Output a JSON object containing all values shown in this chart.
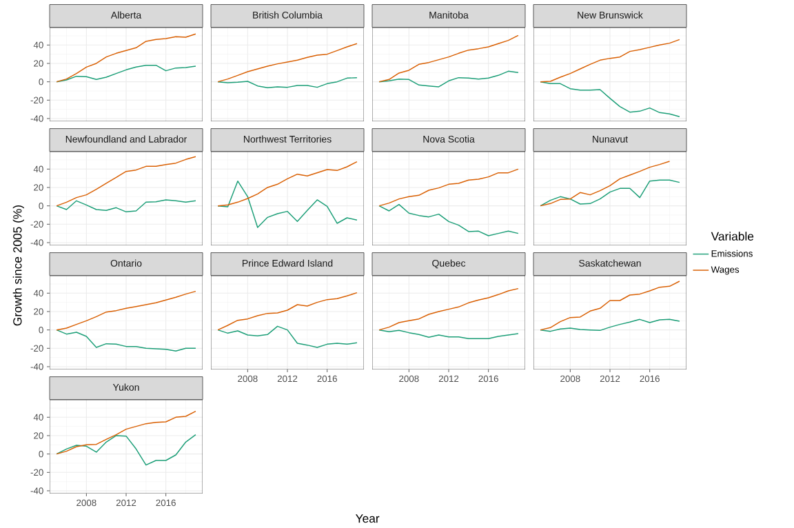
{
  "chart_data": [
    {
      "type": "line",
      "title": "Alberta",
      "x": [
        2005,
        2006,
        2007,
        2008,
        2009,
        2010,
        2011,
        2012,
        2013,
        2014,
        2015,
        2016,
        2017,
        2018,
        2019
      ],
      "xlim": [
        2004.3,
        2019.7
      ],
      "ylim": [
        -43,
        59
      ],
      "xticks": [
        2008,
        2012,
        2016
      ],
      "yticks": [
        -40,
        -20,
        0,
        20,
        40
      ],
      "grid": true,
      "tick_labels": "y",
      "series": [
        {
          "color": "#1b9e77",
          "values": [
            0,
            2,
            6,
            5.5,
            2.5,
            5,
            9,
            13,
            16,
            18,
            18,
            12,
            15,
            15.5,
            17
          ]
        },
        {
          "color": "#d95f02",
          "values": [
            0,
            3,
            9,
            16,
            20,
            27,
            31,
            34,
            37,
            44,
            46,
            47,
            49,
            48.5,
            52
          ]
        }
      ]
    },
    {
      "type": "line",
      "title": "British Columbia",
      "x": [
        2005,
        2006,
        2007,
        2008,
        2009,
        2010,
        2011,
        2012,
        2013,
        2014,
        2015,
        2016,
        2017,
        2018,
        2019
      ],
      "xlim": [
        2004.3,
        2019.7
      ],
      "ylim": [
        -43,
        59
      ],
      "xticks": [
        2008,
        2012,
        2016
      ],
      "yticks": [
        -40,
        -20,
        0,
        20,
        40
      ],
      "grid": true,
      "tick_labels": false,
      "series": [
        {
          "color": "#1b9e77",
          "values": [
            0,
            -1,
            -0.5,
            0.5,
            -4.5,
            -6.5,
            -5.5,
            -6,
            -4,
            -4,
            -6,
            -2,
            0,
            4,
            4.5
          ]
        },
        {
          "color": "#d95f02",
          "values": [
            0,
            3,
            7,
            11,
            14,
            17,
            19.5,
            21.5,
            23.5,
            26.5,
            29,
            30,
            34,
            38,
            41.5
          ]
        }
      ]
    },
    {
      "type": "line",
      "title": "Manitoba",
      "x": [
        2005,
        2006,
        2007,
        2008,
        2009,
        2010,
        2011,
        2012,
        2013,
        2014,
        2015,
        2016,
        2017,
        2018,
        2019
      ],
      "xlim": [
        2004.3,
        2019.7
      ],
      "ylim": [
        -43,
        59
      ],
      "xticks": [
        2008,
        2012,
        2016
      ],
      "yticks": [
        -40,
        -20,
        0,
        20,
        40
      ],
      "grid": true,
      "tick_labels": false,
      "series": [
        {
          "color": "#1b9e77",
          "values": [
            0,
            1,
            3,
            2.5,
            -3.5,
            -4.5,
            -5.5,
            1,
            4.5,
            4,
            3,
            4,
            7,
            11.5,
            10
          ]
        },
        {
          "color": "#d95f02",
          "values": [
            0,
            2.5,
            9.5,
            12.5,
            19,
            21,
            24,
            27,
            31,
            34.5,
            36,
            38,
            41.5,
            45,
            50.5
          ]
        }
      ]
    },
    {
      "type": "line",
      "title": "New Brunswick",
      "x": [
        2005,
        2006,
        2007,
        2008,
        2009,
        2010,
        2011,
        2012,
        2013,
        2014,
        2015,
        2016,
        2017,
        2018,
        2019
      ],
      "xlim": [
        2004.3,
        2019.7
      ],
      "ylim": [
        -43,
        59
      ],
      "xticks": [
        2008,
        2012,
        2016
      ],
      "yticks": [
        -40,
        -20,
        0,
        20,
        40
      ],
      "grid": true,
      "tick_labels": false,
      "series": [
        {
          "color": "#1b9e77",
          "values": [
            0,
            -2,
            -2,
            -7.5,
            -9,
            -9,
            -8.5,
            -18,
            -27,
            -33,
            -32,
            -28.5,
            -33.5,
            -35,
            -38
          ]
        },
        {
          "color": "#d95f02",
          "values": [
            0,
            0.5,
            5,
            9,
            14,
            19,
            23.5,
            25.5,
            27,
            33,
            35,
            37.5,
            40,
            42,
            46
          ]
        }
      ]
    },
    {
      "type": "line",
      "title": "Newfoundland and Labrador",
      "x": [
        2005,
        2006,
        2007,
        2008,
        2009,
        2010,
        2011,
        2012,
        2013,
        2014,
        2015,
        2016,
        2017,
        2018,
        2019
      ],
      "xlim": [
        2004.3,
        2019.7
      ],
      "ylim": [
        -43,
        59
      ],
      "xticks": [
        2008,
        2012,
        2016
      ],
      "yticks": [
        -40,
        -20,
        0,
        20,
        40
      ],
      "grid": true,
      "tick_labels": "y",
      "series": [
        {
          "color": "#1b9e77",
          "values": [
            0,
            -4,
            5.5,
            1,
            -4,
            -5,
            -2,
            -6.5,
            -5.5,
            4,
            4.5,
            6.5,
            5.5,
            4,
            5.5
          ]
        },
        {
          "color": "#d95f02",
          "values": [
            0,
            4,
            9,
            12,
            18,
            24.5,
            31,
            37.5,
            39,
            43,
            43,
            45,
            46.5,
            50.5,
            53.5
          ]
        }
      ]
    },
    {
      "type": "line",
      "title": "Northwest Territories",
      "x": [
        2005,
        2006,
        2007,
        2008,
        2009,
        2010,
        2011,
        2012,
        2013,
        2014,
        2015,
        2016,
        2017,
        2018,
        2019
      ],
      "xlim": [
        2004.3,
        2019.7
      ],
      "ylim": [
        -43,
        59
      ],
      "xticks": [
        2008,
        2012,
        2016
      ],
      "yticks": [
        -40,
        -20,
        0,
        20,
        40
      ],
      "grid": true,
      "tick_labels": false,
      "series": [
        {
          "color": "#1b9e77",
          "values": [
            0,
            -1,
            27,
            10,
            -23.5,
            -12.5,
            -8.5,
            -6,
            -17,
            -5,
            6.5,
            -0.5,
            -19,
            -13,
            -15.5
          ]
        },
        {
          "color": "#d95f02",
          "values": [
            0,
            1,
            4,
            8,
            13,
            20,
            23.5,
            29.5,
            34.5,
            32.5,
            36,
            39.5,
            38.5,
            42.5,
            48
          ]
        }
      ]
    },
    {
      "type": "line",
      "title": "Nova Scotia",
      "x": [
        2005,
        2006,
        2007,
        2008,
        2009,
        2010,
        2011,
        2012,
        2013,
        2014,
        2015,
        2016,
        2017,
        2018,
        2019
      ],
      "xlim": [
        2004.3,
        2019.7
      ],
      "ylim": [
        -43,
        59
      ],
      "xticks": [
        2008,
        2012,
        2016
      ],
      "yticks": [
        -40,
        -20,
        0,
        20,
        40
      ],
      "grid": true,
      "tick_labels": false,
      "series": [
        {
          "color": "#1b9e77",
          "values": [
            0,
            -5.5,
            1.5,
            -8,
            -10.5,
            -12,
            -9,
            -17,
            -21,
            -28,
            -27.5,
            -32.5,
            -30,
            -27.5,
            -30
          ]
        },
        {
          "color": "#d95f02",
          "values": [
            0,
            3,
            7.5,
            10,
            11.5,
            17,
            19.5,
            23.5,
            24.5,
            28,
            29,
            31.5,
            36,
            36,
            40
          ]
        }
      ]
    },
    {
      "type": "line",
      "title": "Nunavut",
      "x": [
        2005,
        2006,
        2007,
        2008,
        2009,
        2010,
        2011,
        2012,
        2013,
        2014,
        2015,
        2016,
        2017,
        2018,
        2019
      ],
      "xlim": [
        2004.3,
        2019.7
      ],
      "ylim": [
        -43,
        59
      ],
      "xticks": [
        2008,
        2012,
        2016
      ],
      "yticks": [
        -40,
        -20,
        0,
        20,
        40
      ],
      "grid": true,
      "tick_labels": false,
      "series": [
        {
          "color": "#1b9e77",
          "values": [
            0,
            6,
            10,
            7.5,
            2,
            2.5,
            7.5,
            15,
            19,
            19,
            9,
            27,
            28,
            28,
            25.5
          ]
        },
        {
          "color": "#d95f02",
          "values": [
            0,
            2.5,
            7,
            7.5,
            14.5,
            12,
            16.5,
            22,
            29.5,
            33.5,
            37.5,
            42,
            45,
            48.5,
            null
          ]
        }
      ]
    },
    {
      "type": "line",
      "title": "Ontario",
      "ylabel": "Growth since 2005 (%)",
      "x": [
        2005,
        2006,
        2007,
        2008,
        2009,
        2010,
        2011,
        2012,
        2013,
        2014,
        2015,
        2016,
        2017,
        2018,
        2019
      ],
      "xlim": [
        2004.3,
        2019.7
      ],
      "ylim": [
        -43,
        59
      ],
      "xticks": [
        2008,
        2012,
        2016
      ],
      "yticks": [
        -40,
        -20,
        0,
        20,
        40
      ],
      "grid": true,
      "tick_labels": "y",
      "series": [
        {
          "color": "#1b9e77",
          "values": [
            0,
            -4.5,
            -2.5,
            -7,
            -19,
            -15,
            -15.5,
            -18,
            -18,
            -20,
            -20.5,
            -21,
            -23,
            -20,
            -20
          ]
        },
        {
          "color": "#d95f02",
          "values": [
            0,
            2,
            6,
            10,
            14.5,
            19.5,
            21,
            23.5,
            25.5,
            27.5,
            29.5,
            32.5,
            35.5,
            39,
            42
          ]
        }
      ]
    },
    {
      "type": "line",
      "title": "Prince Edward Island",
      "xlabel": "Year",
      "x": [
        2005,
        2006,
        2007,
        2008,
        2009,
        2010,
        2011,
        2012,
        2013,
        2014,
        2015,
        2016,
        2017,
        2018,
        2019
      ],
      "xlim": [
        2004.3,
        2019.7
      ],
      "ylim": [
        -43,
        59
      ],
      "xticks": [
        2008,
        2012,
        2016
      ],
      "yticks": [
        -40,
        -20,
        0,
        20,
        40
      ],
      "grid": true,
      "tick_labels": "x",
      "series": [
        {
          "color": "#1b9e77",
          "values": [
            0,
            -3.5,
            -1,
            -5.5,
            -6.5,
            -5,
            4,
            0,
            -14.5,
            -16.5,
            -19,
            -15.5,
            -14.5,
            -15.5,
            -14
          ]
        },
        {
          "color": "#d95f02",
          "values": [
            0,
            5,
            10.5,
            12,
            15.5,
            18,
            18.5,
            21.5,
            27.5,
            26,
            30,
            33,
            34,
            37,
            40.5
          ]
        }
      ]
    },
    {
      "type": "line",
      "title": "Quebec",
      "x": [
        2005,
        2006,
        2007,
        2008,
        2009,
        2010,
        2011,
        2012,
        2013,
        2014,
        2015,
        2016,
        2017,
        2018,
        2019
      ],
      "xlim": [
        2004.3,
        2019.7
      ],
      "ylim": [
        -43,
        59
      ],
      "xticks": [
        2008,
        2012,
        2016
      ],
      "yticks": [
        -40,
        -20,
        0,
        20,
        40
      ],
      "grid": true,
      "tick_labels": "x",
      "series": [
        {
          "color": "#1b9e77",
          "values": [
            0,
            -2,
            -0.5,
            -3,
            -5,
            -8,
            -5.5,
            -7.5,
            -7.5,
            -9.5,
            -9.5,
            -9.5,
            -7,
            -5.5,
            -4
          ]
        },
        {
          "color": "#d95f02",
          "values": [
            0,
            3,
            8,
            10,
            12,
            17,
            20,
            22.5,
            25,
            29.5,
            32.5,
            35,
            38.5,
            42.5,
            45
          ]
        }
      ]
    },
    {
      "type": "line",
      "title": "Saskatchewan",
      "legend": "right",
      "legend_title": "Variable",
      "x": [
        2005,
        2006,
        2007,
        2008,
        2009,
        2010,
        2011,
        2012,
        2013,
        2014,
        2015,
        2016,
        2017,
        2018,
        2019
      ],
      "xlim": [
        2004.3,
        2019.7
      ],
      "ylim": [
        -43,
        59
      ],
      "xticks": [
        2008,
        2012,
        2016
      ],
      "yticks": [
        -40,
        -20,
        0,
        20,
        40
      ],
      "grid": true,
      "tick_labels": "x",
      "series": [
        {
          "name": "Emissions",
          "color": "#1b9e77",
          "values": [
            0,
            -1.5,
            1,
            2,
            0.5,
            0,
            -0.5,
            3,
            6,
            8.5,
            11.5,
            8,
            11,
            11.5,
            9.5
          ]
        },
        {
          "name": "Wages",
          "color": "#d95f02",
          "values": [
            0,
            2.5,
            9,
            13.5,
            14,
            20.5,
            23.5,
            32,
            32,
            38,
            39,
            42.5,
            46.5,
            47.5,
            53
          ]
        }
      ]
    },
    {
      "type": "line",
      "title": "Yukon",
      "x": [
        2005,
        2006,
        2007,
        2008,
        2009,
        2010,
        2011,
        2012,
        2013,
        2014,
        2015,
        2016,
        2017,
        2018,
        2019
      ],
      "xlim": [
        2004.3,
        2019.7
      ],
      "ylim": [
        -43,
        59
      ],
      "xticks": [
        2008,
        2012,
        2016
      ],
      "yticks": [
        -40,
        -20,
        0,
        20,
        40
      ],
      "grid": true,
      "series": [
        {
          "color": "#1b9e77",
          "values": [
            0,
            5.5,
            9.5,
            8.5,
            2,
            13,
            20,
            19.5,
            5.5,
            -12,
            -7,
            -7,
            -1,
            13,
            21
          ]
        },
        {
          "color": "#d95f02",
          "values": [
            0,
            3,
            8,
            10,
            10.5,
            16,
            21,
            27,
            30,
            33,
            34.5,
            35,
            40,
            41,
            46.5
          ]
        }
      ]
    }
  ]
}
